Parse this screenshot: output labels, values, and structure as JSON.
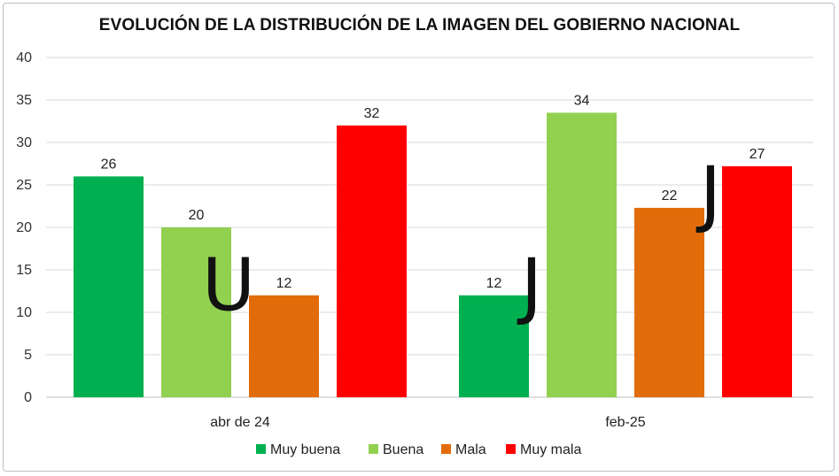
{
  "chart_data": {
    "type": "bar",
    "title": "EVOLUCIÓN DE LA DISTRIBUCIÓN DE LA IMAGEN DEL GOBIERNO NACIONAL",
    "xlabel": "",
    "ylabel": "",
    "ylim": [
      0,
      40
    ],
    "yticks": [
      0,
      5,
      10,
      15,
      20,
      25,
      30,
      35,
      40
    ],
    "grid": true,
    "legend_position": "bottom",
    "categories": [
      "abr de 24",
      "feb-25"
    ],
    "series": [
      {
        "name": "Muy buena",
        "color": "#00b050",
        "values": [
          26,
          12
        ],
        "labels": [
          "26",
          "12"
        ]
      },
      {
        "name": "Buena",
        "color": "#92d050",
        "values": [
          20,
          33.5
        ],
        "labels": [
          "20",
          "34"
        ]
      },
      {
        "name": "Mala",
        "color": "#e36c0a",
        "values": [
          12,
          22.3
        ],
        "labels": [
          "12",
          "22"
        ]
      },
      {
        "name": "Muy mala",
        "color": "#ff0000",
        "values": [
          32,
          27.2
        ],
        "labels": [
          "32",
          "27"
        ]
      }
    ],
    "annotations": [
      {
        "text": "U",
        "category": 0,
        "value": 13.5
      },
      {
        "text": "J",
        "category": 1,
        "value": 13.5
      },
      {
        "text": "J",
        "category": 1,
        "value": 23.0
      }
    ]
  }
}
